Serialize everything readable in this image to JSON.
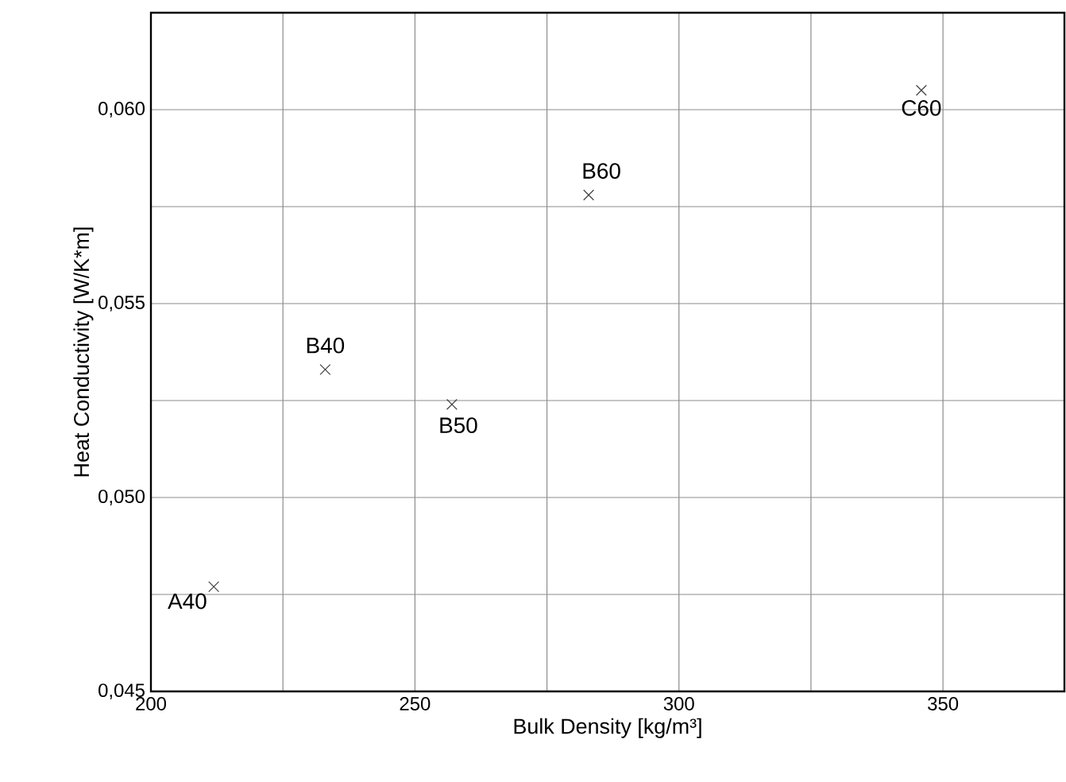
{
  "chart_data": {
    "type": "scatter",
    "xlabel": "Bulk Density [kg/m³]",
    "ylabel": "Heat Conductivity [W/K*m]",
    "x": [
      211.9,
      233.0,
      257.0,
      282.9,
      345.9
    ],
    "values": [
      0.0477,
      0.0533,
      0.0524,
      0.0578,
      0.0605
    ],
    "color": "#404040",
    "marker": "cross",
    "grid": true,
    "xlim": [
      200,
      373
    ],
    "ylim": [
      0.045,
      0.0625
    ],
    "xticks": [
      200,
      {
        "value": 225,
        "label": null
      },
      250,
      {
        "value": 275,
        "label": null
      },
      300,
      {
        "value": 325,
        "label": null
      },
      350
    ],
    "yticks": [
      {
        "value": 0.045,
        "label": "0,045"
      },
      {
        "value": 0.0475,
        "label": null
      },
      {
        "value": 0.05,
        "label": "0,050"
      },
      {
        "value": 0.0525,
        "label": null
      },
      {
        "value": 0.055,
        "label": "0,055"
      },
      {
        "value": 0.0575,
        "label": null
      },
      {
        "value": 0.06,
        "label": "0,060"
      }
    ],
    "annotations": [
      {
        "text": "A40",
        "x": 211.9,
        "y": 0.0477
      },
      {
        "text": "B40",
        "x": 233.0,
        "y": 0.0533
      },
      {
        "text": "B50",
        "x": 257.0,
        "y": 0.0524
      },
      {
        "text": "B60",
        "x": 282.9,
        "y": 0.0578
      },
      {
        "text": "C60",
        "x": 345.9,
        "y": 0.0605
      }
    ]
  }
}
